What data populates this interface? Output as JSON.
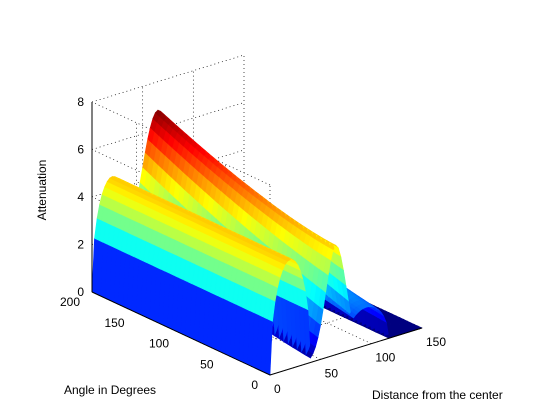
{
  "chart_data": {
    "type": "surface",
    "title": "",
    "xlabel": "Distance from the center",
    "ylabel": "Angle in Degrees",
    "zlabel": "Attenuation",
    "xlim": [
      0,
      150
    ],
    "ylim": [
      0,
      200
    ],
    "zlim": [
      0,
      8
    ],
    "x_ticks": [
      0,
      50,
      100,
      150
    ],
    "y_ticks": [
      0,
      50,
      100,
      150,
      200
    ],
    "z_ticks": [
      0,
      2,
      4,
      6,
      8
    ],
    "grid": true,
    "colormap": "jet",
    "color_low": "#00008f",
    "color_high": "#7f0000",
    "surface": {
      "description_values": {
        "base_level": 0,
        "peak_attenuation": 6.8,
        "peak_angle_deg": 200,
        "peak_distance": 65,
        "near_angle_plateau": 4.6,
        "near_angle_plateau_distance": 65,
        "left_hump_center_distance": 20,
        "left_hump_height": 4.6,
        "right_hump_center_distance": 95,
        "right_hump_height_max": 3.3
      }
    }
  }
}
